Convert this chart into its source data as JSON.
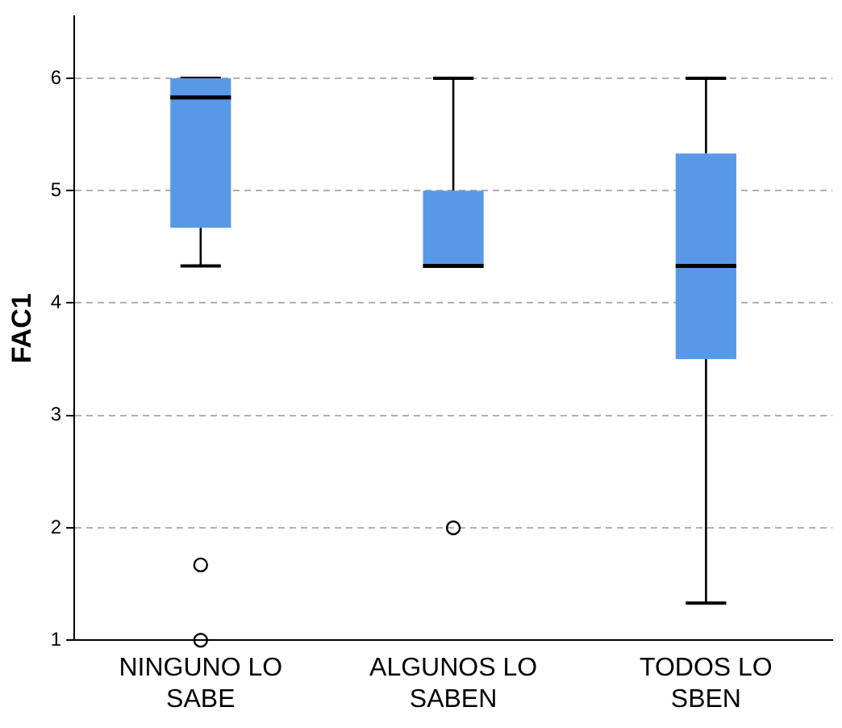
{
  "chart_data": {
    "type": "box",
    "ylabel": "FAC1",
    "categories": [
      "NINGUNO LO SABE",
      "ALGUNOS LO SABEN",
      "TODOS LO SBEN"
    ],
    "series": [
      {
        "color": "#5799e6",
        "boxes": [
          {
            "low": 4.33,
            "q1": 4.67,
            "median": 5.83,
            "q3": 6,
            "high": 6,
            "outliers": [
              1.67,
              1
            ]
          },
          {
            "low": 4.33,
            "q1": 4.33,
            "median": 4.33,
            "q3": 5,
            "high": 6,
            "outliers": [
              2
            ]
          },
          {
            "low": 1.33,
            "q1": 3.5,
            "median": 4.33,
            "q3": 5.33,
            "high": 6
          }
        ]
      }
    ],
    "ylim": [
      1,
      6.55
    ],
    "yticks": [
      1,
      2,
      3,
      4,
      5,
      6
    ],
    "grid": "y"
  }
}
